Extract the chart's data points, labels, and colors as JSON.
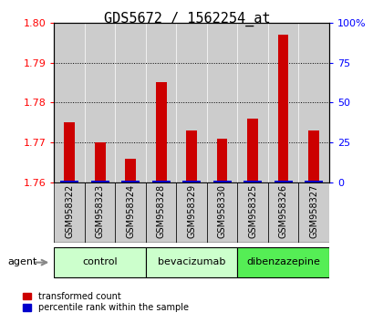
{
  "title": "GDS5672 / 1562254_at",
  "samples": [
    "GSM958322",
    "GSM958323",
    "GSM958324",
    "GSM958328",
    "GSM958329",
    "GSM958330",
    "GSM958325",
    "GSM958326",
    "GSM958327"
  ],
  "red_values": [
    1.775,
    1.77,
    1.766,
    1.785,
    1.773,
    1.771,
    1.776,
    1.797,
    1.773
  ],
  "blue_values": [
    1.0,
    1.0,
    1.0,
    1.0,
    1.0,
    1.0,
    1.0,
    1.0,
    1.0
  ],
  "ylim_left": [
    1.76,
    1.8
  ],
  "ylim_right": [
    0,
    100
  ],
  "yticks_left": [
    1.76,
    1.77,
    1.78,
    1.79,
    1.8
  ],
  "yticks_right": [
    0,
    25,
    50,
    75,
    100
  ],
  "ytick_labels_right": [
    "0",
    "25",
    "50",
    "75",
    "100%"
  ],
  "groups": [
    {
      "label": "control",
      "indices": [
        0,
        1,
        2
      ],
      "color": "#ccffcc"
    },
    {
      "label": "bevacizumab",
      "indices": [
        3,
        4,
        5
      ],
      "color": "#ccffcc"
    },
    {
      "label": "dibenzazepine",
      "indices": [
        6,
        7,
        8
      ],
      "color": "#55ee55"
    }
  ],
  "red_color": "#cc0000",
  "blue_color": "#0000cc",
  "bar_bg_color": "#cccccc",
  "legend_red_label": "transformed count",
  "legend_blue_label": "percentile rank within the sample",
  "agent_label": "agent",
  "title_fontsize": 11,
  "tick_fontsize": 8,
  "label_fontsize": 7
}
